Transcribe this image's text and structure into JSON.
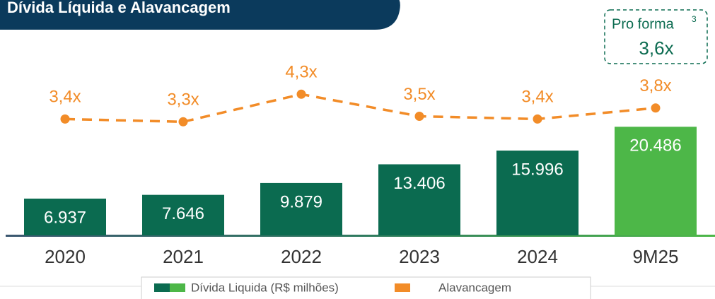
{
  "chart_data": {
    "type": "bar",
    "title": "Dívida Líquida e Alavancagem",
    "categories": [
      "2020",
      "2021",
      "2022",
      "2023",
      "2024",
      "9M25"
    ],
    "series": [
      {
        "name": "Dívida Liquida (R$ milhões)",
        "type": "bar",
        "color": "#0b6b50",
        "colors": [
          "#0b6b50",
          "#0b6b50",
          "#0b6b50",
          "#0b6b50",
          "#0b6b50",
          "#4db748"
        ],
        "values": [
          6937,
          7646,
          9879,
          13406,
          15996,
          20486
        ],
        "value_labels": [
          "6.937",
          "7.646",
          "9.879",
          "13.406",
          "15.996",
          "20.486"
        ]
      },
      {
        "name": "Alavancagem",
        "type": "line",
        "axis": "y2",
        "color": "#f28c28",
        "dashed": true,
        "values": [
          3.4,
          3.3,
          4.3,
          3.5,
          3.4,
          3.8
        ],
        "value_labels": [
          "3,4x",
          "3,3x",
          "4,3x",
          "3,5x",
          "3,4x",
          "3,8x"
        ]
      }
    ],
    "ylim": [
      0,
      24000
    ],
    "y2lim": [
      0,
      5
    ],
    "annotation": {
      "title": "Pro forma",
      "footnote": "3",
      "value": "3,6x"
    }
  }
}
